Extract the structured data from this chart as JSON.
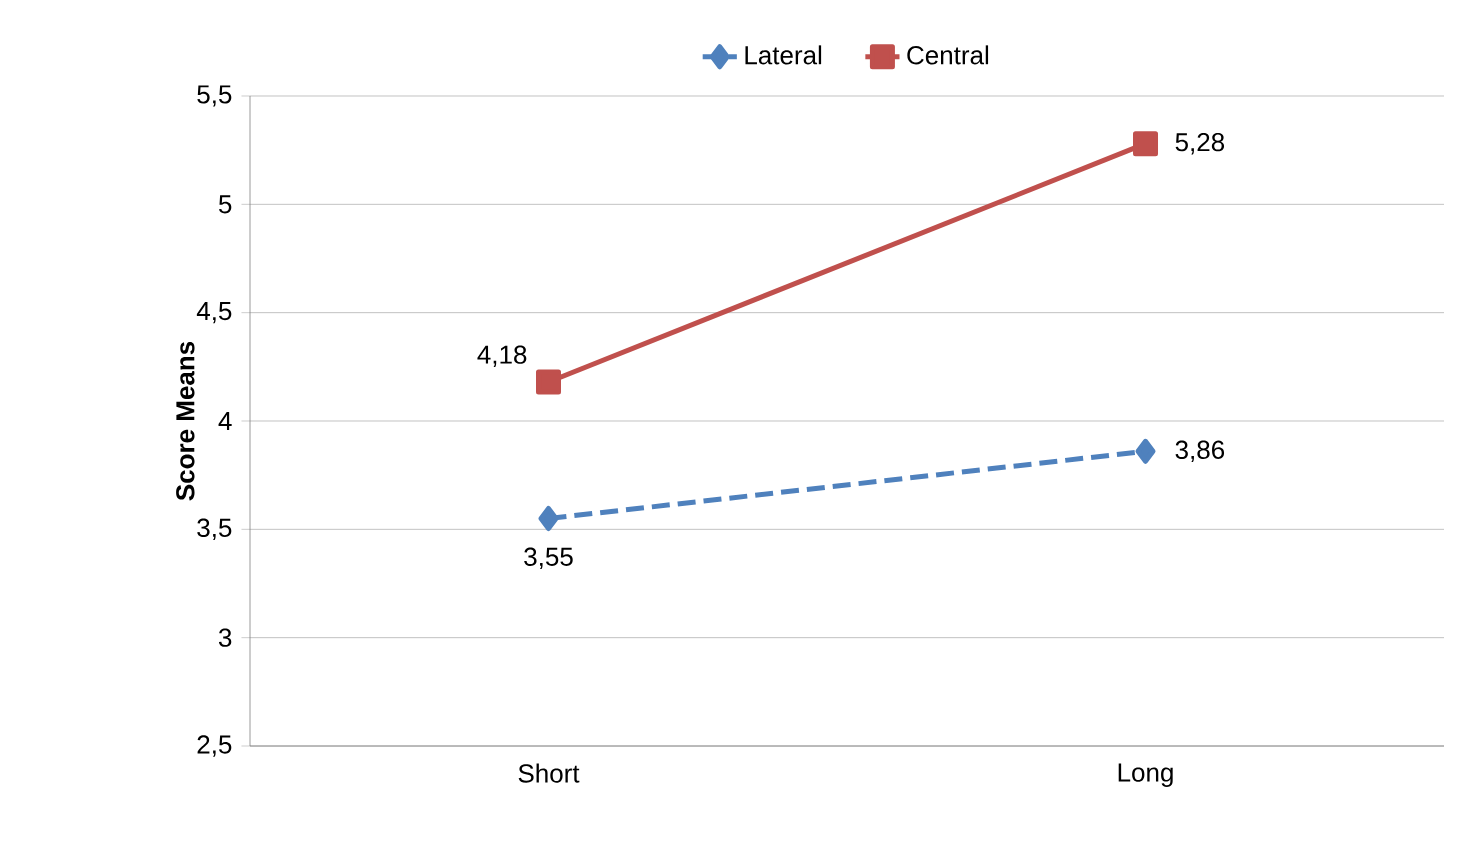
{
  "chart_data": {
    "type": "line",
    "categories": [
      "Short",
      "Long"
    ],
    "ylabel": "Score Means",
    "ylim": [
      2.5,
      5.5
    ],
    "yticks": [
      {
        "value": 2.5,
        "label": "2,5"
      },
      3,
      {
        "value": 3.5,
        "label": "3,5"
      },
      4,
      {
        "value": 4.5,
        "label": "4,5"
      },
      5,
      {
        "value": 5.5,
        "label": "5,5"
      }
    ],
    "grid": "y",
    "legend": "top",
    "series": [
      {
        "name": "Lateral",
        "color": "#4f81bd",
        "values": [
          3.55,
          3.86
        ],
        "value_labels": [
          "3,55",
          "3,86"
        ],
        "line_style": "dashed",
        "marker": "diamond"
      },
      {
        "name": "Central",
        "color": "#c0504d",
        "values": [
          4.18,
          5.28
        ],
        "value_labels": [
          "4,18",
          "5,28"
        ],
        "line_style": "solid",
        "marker": "square"
      }
    ]
  }
}
